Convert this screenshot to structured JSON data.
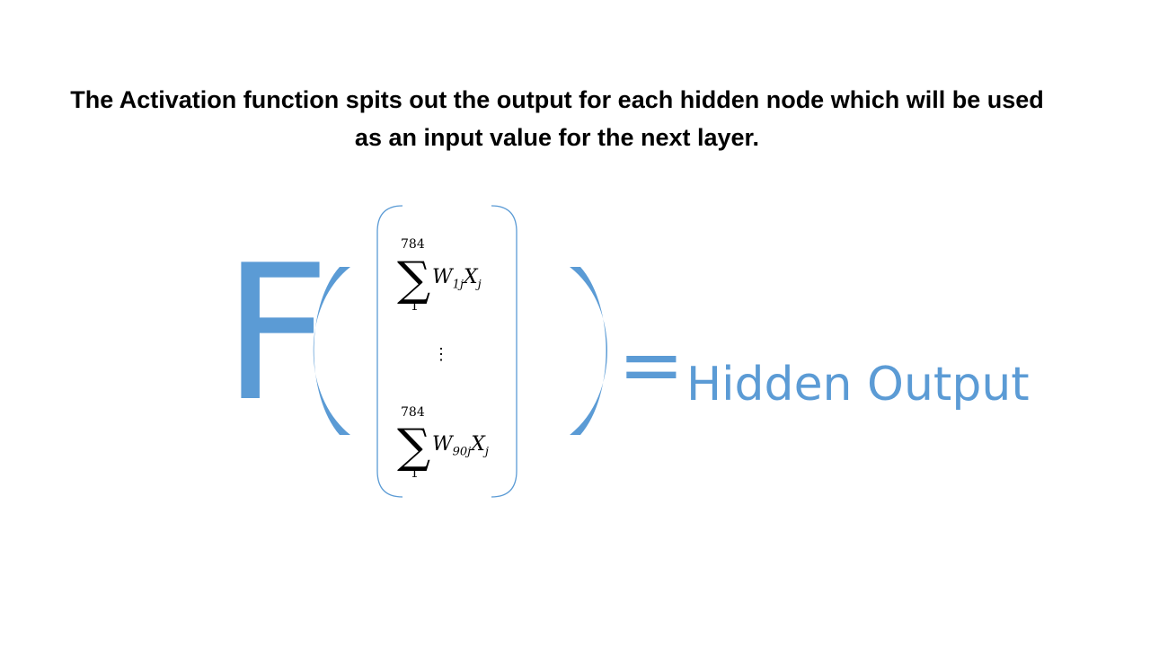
{
  "caption": "The Activation function spits out the output for each hidden node which will be used as an input value for the next layer.",
  "function_letter": "F",
  "equals_sign": "=",
  "result_label": "Hidden Output",
  "vector": {
    "top": {
      "upper_limit": "784",
      "lower_limit": "1",
      "w": "W",
      "w_sub": "1j",
      "x": "X",
      "x_sub": "j"
    },
    "ellipsis": "⋮",
    "bottom": {
      "upper_limit": "784",
      "lower_limit": "1",
      "w": "W",
      "w_sub": "90j",
      "x": "X",
      "x_sub": "j"
    }
  },
  "colors": {
    "accent": "#5b9bd5",
    "text": "#000000"
  }
}
